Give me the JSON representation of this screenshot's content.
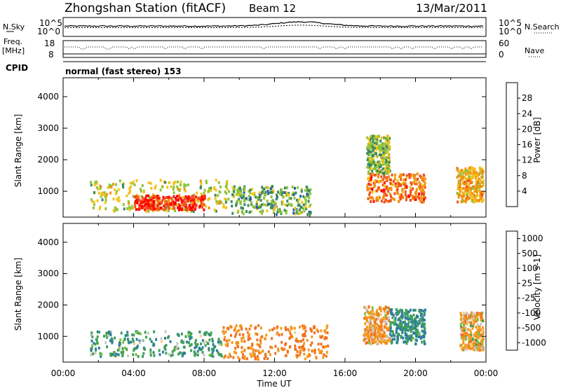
{
  "header": {
    "title": "Zhongshan Station (fitACF)",
    "beam": "Beam 12",
    "date": "13/Mar/2011"
  },
  "sky_panel": {
    "left_label": "N.Sky",
    "right_label": "N.Search",
    "left_ticks": [
      "10^5",
      "10^0"
    ],
    "right_ticks": [
      "10^5",
      "10^0"
    ]
  },
  "freq_panel": {
    "left_label_1": "Freq.",
    "left_label_2": "[MHz]",
    "left_ticks": [
      "18",
      "8"
    ],
    "right_label": "Nave",
    "right_ticks": [
      "60",
      "0"
    ]
  },
  "cpid": {
    "label": "CPID",
    "text": "normal (fast stereo) 153"
  },
  "x_axis": {
    "label": "Time UT",
    "ticks": [
      "00:00",
      "04:00",
      "08:00",
      "12:00",
      "16:00",
      "20:00",
      "00:00"
    ]
  },
  "power_panel": {
    "ylabel": "Slant Range [km]",
    "yticks": [
      "1000",
      "2000",
      "3000",
      "4000"
    ],
    "colorbar_label": "Power [dB]",
    "colorbar_ticks": [
      "4",
      "8",
      "12",
      "16",
      "20",
      "24",
      "28"
    ],
    "colors": [
      "#1a1aff",
      "#2e5cab",
      "#3a8a5a",
      "#8fc43a",
      "#f2c21a",
      "#f2900f",
      "#f05020",
      "#ff0000"
    ]
  },
  "velocity_panel": {
    "ylabel": "Slant Range [km]",
    "yticks": [
      "1000",
      "2000",
      "3000",
      "4000"
    ],
    "colorbar_label": "Velocity [m s-1]",
    "colorbar_ticks": [
      "1000",
      "500",
      "100",
      "25",
      "-25",
      "-100",
      "-500",
      "-1000"
    ],
    "colors": [
      "#2a3fb5",
      "#2f7f9a",
      "#3f9f5a",
      "#7ac43a",
      "#c8c8c8",
      "#f2d08a",
      "#f29a20",
      "#f07020",
      "#ff2020"
    ]
  },
  "chart_data": [
    {
      "type": "heatmap",
      "title": "Power",
      "xlabel": "Time UT",
      "ylabel": "Slant Range [km]",
      "xlim": [
        "00:00",
        "24:00"
      ],
      "ylim": [
        180,
        4600
      ],
      "colorbar": {
        "label": "Power [dB]",
        "min": 0,
        "max": 32
      },
      "regions": [
        {
          "t_start": 1.5,
          "t_end": 9.5,
          "r_min": 400,
          "r_max": 1400,
          "value": 16
        },
        {
          "t_start": 4.0,
          "t_end": 8.0,
          "r_min": 450,
          "r_max": 900,
          "value": 28
        },
        {
          "t_start": 9.5,
          "t_end": 14.0,
          "r_min": 300,
          "r_max": 1200,
          "value": 12
        },
        {
          "t_start": 17.2,
          "t_end": 20.5,
          "r_min": 700,
          "r_max": 1600,
          "value": 24
        },
        {
          "t_start": 17.2,
          "t_end": 18.5,
          "r_min": 1600,
          "r_max": 2800,
          "value": 14
        },
        {
          "t_start": 22.3,
          "t_end": 23.8,
          "r_min": 700,
          "r_max": 1800,
          "value": 20
        }
      ]
    },
    {
      "type": "heatmap",
      "title": "Velocity",
      "xlabel": "Time UT",
      "ylabel": "Slant Range [km]",
      "xlim": [
        "00:00",
        "24:00"
      ],
      "ylim": [
        180,
        4600
      ],
      "colorbar": {
        "label": "Velocity [m s-1]",
        "min": -1000,
        "max": 1000
      },
      "regions": [
        {
          "t_start": 1.5,
          "t_end": 9.0,
          "r_min": 400,
          "r_max": 1200,
          "value": 200
        },
        {
          "t_start": 9.0,
          "t_end": 15.0,
          "r_min": 300,
          "r_max": 1400,
          "value": -300
        },
        {
          "t_start": 17.0,
          "t_end": 18.5,
          "r_min": 800,
          "r_max": 2000,
          "value": -200
        },
        {
          "t_start": 18.5,
          "t_end": 20.5,
          "r_min": 800,
          "r_max": 1900,
          "value": 300
        },
        {
          "t_start": 22.5,
          "t_end": 23.8,
          "r_min": 600,
          "r_max": 1800,
          "value": -150
        }
      ]
    }
  ]
}
